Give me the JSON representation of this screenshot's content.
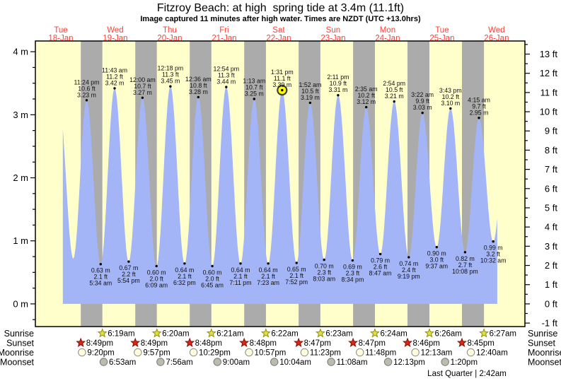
{
  "title": "Fitzroy Beach: at high  spring tide at 3.4m (11.1ft)",
  "subtitle": "Image captured 11 minutes after high water. Times are NZDT (UTC +13.0hrs)",
  "colors": {
    "background": "#ffffff",
    "day_band": "#ffffcc",
    "night_band": "#ababab",
    "tide_fill": "#a3b4f7",
    "axis": "#000000",
    "day_label": "#ff4136",
    "annotation_text": "#111111",
    "current_marker_fill": "#ffff00",
    "current_marker_ring": "#404040",
    "sunrise_star_fill": "#e0e040",
    "sunrise_star_stroke": "#909010",
    "sunset_star_fill": "#dd2418",
    "sunset_star_stroke": "#801000",
    "moonrise_fill": "#ffffdd",
    "moonrise_stroke": "#888888",
    "moonset_fill": "#bcbcae",
    "moonset_stroke": "#777777"
  },
  "chart_data": {
    "type": "area",
    "title": "Fitzroy Beach: at high  spring tide at 3.4m (11.1ft)",
    "xlabel": "days (Tue 18-Jan through Wed 26-Jan, NZDT)",
    "ylabel_left": "tide height (m)",
    "ylabel_right": "tide height (ft)",
    "hours_domain": [
      0.8,
      216.5
    ],
    "fill_domain_hours": [
      12.9,
      204.3
    ],
    "sea_level_m": 0,
    "y_axis_left": {
      "unit": "m",
      "range": [
        -0.36,
        4.17
      ],
      "major_ticks": [
        0,
        1,
        2,
        3,
        4
      ],
      "minor_step": 0.25
    },
    "y_axis_right": {
      "unit": "ft",
      "major_ticks": [
        -1,
        0,
        1,
        2,
        3,
        4,
        5,
        6,
        7,
        8,
        9,
        10,
        11,
        12,
        13
      ],
      "minor_step": 0.5,
      "meters_per_foot": 0.3048
    },
    "x_days": [
      {
        "weekday": "Tue",
        "date": "18-Jan",
        "noon_hour": 12
      },
      {
        "weekday": "Wed",
        "date": "19-Jan",
        "noon_hour": 36
      },
      {
        "weekday": "Thu",
        "date": "20-Jan",
        "noon_hour": 60
      },
      {
        "weekday": "Fri",
        "date": "21-Jan",
        "noon_hour": 84
      },
      {
        "weekday": "Sat",
        "date": "22-Jan",
        "noon_hour": 108
      },
      {
        "weekday": "Sun",
        "date": "23-Jan",
        "noon_hour": 132
      },
      {
        "weekday": "Mon",
        "date": "24-Jan",
        "noon_hour": 156
      },
      {
        "weekday": "Tue",
        "date": "25-Jan",
        "noon_hour": 180
      },
      {
        "weekday": "Wed",
        "date": "26-Jan",
        "noon_hour": 204
      }
    ],
    "night_bands_hours": [
      [
        20.817,
        30.317
      ],
      [
        44.817,
        54.333
      ],
      [
        68.8,
        78.35
      ],
      [
        92.8,
        102.367
      ],
      [
        116.783,
        126.383
      ],
      [
        140.783,
        150.4
      ],
      [
        164.767,
        174.433
      ],
      [
        188.75,
        198.45
      ]
    ],
    "tide_events": [
      {
        "kind": "high",
        "hour": 11.17,
        "height_m": 3.2,
        "annotated": false
      },
      {
        "kind": "low",
        "hour": 17.5,
        "height_m": 0.72,
        "annotated": false
      },
      {
        "kind": "high",
        "hour": 23.4,
        "height_m": 3.23,
        "time_label": "11:24 pm",
        "ft_label": "10.6 ft",
        "m_label": "3.23 m",
        "annotated": true
      },
      {
        "kind": "low",
        "hour": 29.567,
        "height_m": 0.63,
        "time_label": "5:34 am",
        "ft_label": "2.1 ft",
        "m_label": "0.63 m",
        "annotated": true
      },
      {
        "kind": "high",
        "hour": 35.717,
        "height_m": 3.42,
        "time_label": "11:43 am",
        "ft_label": "11.2 ft",
        "m_label": "3.42 m",
        "annotated": true
      },
      {
        "kind": "low",
        "hour": 41.9,
        "height_m": 0.67,
        "time_label": "5:54 pm",
        "ft_label": "2.2 ft",
        "m_label": "0.67 m",
        "annotated": true
      },
      {
        "kind": "high",
        "hour": 48.0,
        "height_m": 3.27,
        "time_label": "12:00 am",
        "ft_label": "10.7 ft",
        "m_label": "3.27 m",
        "annotated": true
      },
      {
        "kind": "low",
        "hour": 54.15,
        "height_m": 0.6,
        "time_label": "6:09 am",
        "ft_label": "2.0 ft",
        "m_label": "0.60 m",
        "annotated": true
      },
      {
        "kind": "high",
        "hour": 60.3,
        "height_m": 3.45,
        "time_label": "12:18 pm",
        "ft_label": "11.3 ft",
        "m_label": "3.45 m",
        "annotated": true
      },
      {
        "kind": "low",
        "hour": 66.533,
        "height_m": 0.64,
        "time_label": "6:32 pm",
        "ft_label": "2.1 ft",
        "m_label": "0.64 m",
        "annotated": true
      },
      {
        "kind": "high",
        "hour": 72.6,
        "height_m": 3.28,
        "time_label": "12:36 am",
        "ft_label": "10.8 ft",
        "m_label": "3.28 m",
        "annotated": true
      },
      {
        "kind": "low",
        "hour": 78.75,
        "height_m": 0.6,
        "time_label": "6:45 am",
        "ft_label": "2.0 ft",
        "m_label": "0.60 m",
        "annotated": true
      },
      {
        "kind": "high",
        "hour": 84.9,
        "height_m": 3.44,
        "time_label": "12:54 pm",
        "ft_label": "11.3 ft",
        "m_label": "3.44 m",
        "annotated": true
      },
      {
        "kind": "low",
        "hour": 91.183,
        "height_m": 0.64,
        "time_label": "7:11 pm",
        "ft_label": "2.1 ft",
        "m_label": "0.64 m",
        "annotated": true
      },
      {
        "kind": "high",
        "hour": 97.217,
        "height_m": 3.25,
        "time_label": "1:13 am",
        "ft_label": "10.7 ft",
        "m_label": "3.25 m",
        "annotated": true
      },
      {
        "kind": "low",
        "hour": 103.383,
        "height_m": 0.64,
        "time_label": "7:23 am",
        "ft_label": "2.1 ft",
        "m_label": "0.64 m",
        "annotated": true
      },
      {
        "kind": "high",
        "hour": 109.517,
        "height_m": 3.39,
        "time_label": "1:31 pm",
        "ft_label": "11.1 ft",
        "m_label": "3.39 m",
        "annotated": true
      },
      {
        "kind": "low",
        "hour": 115.867,
        "height_m": 0.65,
        "time_label": "7:52 pm",
        "ft_label": "2.1 ft",
        "m_label": "0.65 m",
        "annotated": true
      },
      {
        "kind": "high",
        "hour": 121.867,
        "height_m": 3.19,
        "time_label": "1:52 am",
        "ft_label": "10.5 ft",
        "m_label": "3.19 m",
        "annotated": true
      },
      {
        "kind": "low",
        "hour": 128.05,
        "height_m": 0.7,
        "time_label": "8:03 am",
        "ft_label": "2.3 ft",
        "m_label": "0.70 m",
        "annotated": true
      },
      {
        "kind": "high",
        "hour": 134.183,
        "height_m": 3.31,
        "time_label": "2:11 pm",
        "ft_label": "10.9 ft",
        "m_label": "3.31 m",
        "annotated": true
      },
      {
        "kind": "low",
        "hour": 140.567,
        "height_m": 0.69,
        "time_label": "8:34 pm",
        "ft_label": "2.3 ft",
        "m_label": "0.69 m",
        "annotated": true
      },
      {
        "kind": "high",
        "hour": 146.583,
        "height_m": 3.12,
        "time_label": "2:35 am",
        "ft_label": "10.2 ft",
        "m_label": "3.12 m",
        "annotated": true
      },
      {
        "kind": "low",
        "hour": 152.783,
        "height_m": 0.79,
        "time_label": "8:47 am",
        "ft_label": "2.6 ft",
        "m_label": "0.79 m",
        "annotated": true
      },
      {
        "kind": "high",
        "hour": 158.9,
        "height_m": 3.21,
        "time_label": "2:54 pm",
        "ft_label": "10.5 ft",
        "m_label": "3.21 m",
        "annotated": true
      },
      {
        "kind": "low",
        "hour": 165.317,
        "height_m": 0.74,
        "time_label": "9:19 pm",
        "ft_label": "2.4 ft",
        "m_label": "0.74 m",
        "annotated": true
      },
      {
        "kind": "high",
        "hour": 171.367,
        "height_m": 3.03,
        "time_label": "3:22 am",
        "ft_label": "9.9 ft",
        "m_label": "3.03 m",
        "annotated": true
      },
      {
        "kind": "low",
        "hour": 177.617,
        "height_m": 0.9,
        "time_label": "9:37 am",
        "ft_label": "3.0 ft",
        "m_label": "0.90 m",
        "annotated": true
      },
      {
        "kind": "high",
        "hour": 183.717,
        "height_m": 3.1,
        "time_label": "3:43 pm",
        "ft_label": "10.2 ft",
        "m_label": "3.10 m",
        "annotated": true
      },
      {
        "kind": "low",
        "hour": 190.133,
        "height_m": 0.82,
        "time_label": "10:08 pm",
        "ft_label": "2.7 ft",
        "m_label": "0.82 m",
        "annotated": true
      },
      {
        "kind": "high",
        "hour": 196.25,
        "height_m": 2.95,
        "time_label": "4:15 am",
        "ft_label": "9.7 ft",
        "m_label": "2.95 m",
        "annotated": true
      },
      {
        "kind": "low",
        "hour": 202.533,
        "height_m": 0.99,
        "time_label": "10:32 am",
        "ft_label": "3.2 ft",
        "m_label": "0.99 m",
        "annotated": true
      },
      {
        "kind": "high",
        "hour": 208.75,
        "height_m": 2.95,
        "annotated": false
      }
    ],
    "current_time_marker": {
      "event_hour": 109.517,
      "note": "yellow ring on 1:31 pm Sat high tide"
    }
  },
  "almanac": {
    "rows": [
      {
        "label": "Sunrise",
        "marker": "sunrise-star",
        "entries": [
          {
            "hour": 30.317,
            "time": "6:19am"
          },
          {
            "hour": 54.333,
            "time": "6:20am"
          },
          {
            "hour": 78.35,
            "time": "6:21am"
          },
          {
            "hour": 102.367,
            "time": "6:22am"
          },
          {
            "hour": 126.383,
            "time": "6:23am"
          },
          {
            "hour": 150.4,
            "time": "6:24am"
          },
          {
            "hour": 174.433,
            "time": "6:26am"
          },
          {
            "hour": 198.45,
            "time": "6:27am"
          }
        ]
      },
      {
        "label": "Sunset",
        "marker": "sunset-star",
        "entries": [
          {
            "hour": 20.817,
            "time": "8:49pm"
          },
          {
            "hour": 44.817,
            "time": "8:49pm"
          },
          {
            "hour": 68.8,
            "time": "8:48pm"
          },
          {
            "hour": 92.8,
            "time": "8:48pm"
          },
          {
            "hour": 116.783,
            "time": "8:47pm"
          },
          {
            "hour": 140.783,
            "time": "8:47pm"
          },
          {
            "hour": 164.767,
            "time": "8:46pm"
          },
          {
            "hour": 188.75,
            "time": "8:45pm"
          }
        ]
      },
      {
        "label": "Moonrise",
        "marker": "moonrise-circle",
        "entries": [
          {
            "hour": 21.333,
            "time": "9:20pm"
          },
          {
            "hour": 45.95,
            "time": "9:57pm"
          },
          {
            "hour": 70.483,
            "time": "10:29pm"
          },
          {
            "hour": 94.95,
            "time": "10:57pm"
          },
          {
            "hour": 119.383,
            "time": "11:23pm"
          },
          {
            "hour": 143.8,
            "time": "11:48pm"
          },
          {
            "hour": 168.217,
            "time": "12:13am"
          },
          {
            "hour": 192.667,
            "time": "12:40am"
          }
        ]
      },
      {
        "label": "Moonset",
        "marker": "moonset-circle",
        "entries": [
          {
            "hour": 30.883,
            "time": "6:53am"
          },
          {
            "hour": 55.933,
            "time": "7:56am"
          },
          {
            "hour": 81.0,
            "time": "9:00am"
          },
          {
            "hour": 106.067,
            "time": "10:04am"
          },
          {
            "hour": 131.133,
            "time": "11:08am"
          },
          {
            "hour": 156.217,
            "time": "12:13pm"
          },
          {
            "hour": 181.333,
            "time": "1:20pm"
          }
        ]
      }
    ],
    "footnote": "Last Quarter | 2:42am"
  }
}
